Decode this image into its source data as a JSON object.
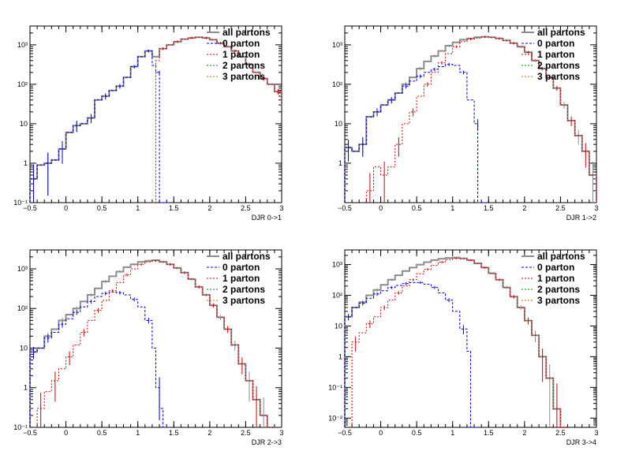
{
  "colors": {
    "all_partons": "#8c8c8c",
    "parton_0": "#0000cc",
    "parton_1": "#cc0000",
    "parton_2": "#008800",
    "parton_3": "#cc6600"
  },
  "chart_data": [
    {
      "type": "line",
      "step": true,
      "xlabel": "DJR 0->1",
      "x_ticks": [
        "−0.5",
        "0",
        "0.5",
        "1",
        "1.5",
        "2",
        "2.5",
        "3"
      ],
      "y_scale": "log",
      "xlim": [
        -0.5,
        3
      ],
      "ylim": [
        0.1,
        3000
      ],
      "y_ticks": [
        {
          "value": 0.1,
          "label": "10⁻¹"
        },
        {
          "value": 1,
          "label": "1"
        },
        {
          "value": 10,
          "label": "10"
        },
        {
          "value": 100,
          "label": "10²"
        },
        {
          "value": 1000,
          "label": "10³"
        }
      ],
      "legend": {
        "position": "top-right",
        "entries": [
          "all partons",
          "0 parton",
          "1 parton",
          "2 partons",
          "3 partons"
        ]
      },
      "series": [
        {
          "name": "all partons",
          "color_key": "all_partons",
          "x": [
            -0.5,
            -0.4,
            -0.3,
            -0.2,
            -0.1,
            0.0,
            0.1,
            0.2,
            0.3,
            0.4,
            0.5,
            0.6,
            0.7,
            0.8,
            0.9,
            1.0,
            1.1,
            1.2,
            1.3,
            1.4,
            1.5,
            1.6,
            1.7,
            1.8,
            1.9,
            2.0,
            2.1,
            2.2,
            2.3,
            2.4,
            2.5,
            2.6,
            2.7,
            2.8,
            2.9,
            3.0
          ],
          "y": [
            0.4,
            0.9,
            1.0,
            1.2,
            2.3,
            6.0,
            9.0,
            10.0,
            14,
            40,
            50,
            70,
            90,
            150,
            280,
            500,
            700,
            500,
            800,
            1000,
            1200,
            1400,
            1500,
            1550,
            1500,
            1350,
            1100,
            900,
            700,
            500,
            320,
            200,
            140,
            100,
            65,
            30
          ]
        },
        {
          "name": "0 parton",
          "color_key": "parton_0",
          "x": [
            -0.5,
            -0.4,
            -0.3,
            -0.2,
            -0.1,
            0.0,
            0.1,
            0.2,
            0.3,
            0.4,
            0.5,
            0.6,
            0.7,
            0.8,
            0.9,
            1.0,
            1.1,
            1.2,
            1.25,
            1.3,
            1.35
          ],
          "y": [
            0.4,
            0.9,
            1.0,
            1.2,
            2.3,
            6.0,
            9.0,
            10.0,
            14,
            40,
            50,
            70,
            90,
            150,
            280,
            500,
            700,
            300,
            200,
            0.1,
            0.1
          ]
        },
        {
          "name": "1 parton",
          "color_key": "parton_1",
          "x": [
            1.2,
            1.25,
            1.3,
            1.4,
            1.5,
            1.6,
            1.7,
            1.8,
            1.9,
            2.0,
            2.1,
            2.2,
            2.3,
            2.4,
            2.5,
            2.6,
            2.7,
            2.8,
            2.9,
            3.0
          ],
          "y": [
            0.1,
            400,
            800,
            1000,
            1200,
            1400,
            1500,
            1550,
            1500,
            1350,
            1100,
            900,
            700,
            500,
            320,
            200,
            140,
            100,
            65,
            30
          ]
        },
        {
          "name": "2 partons",
          "color_key": "parton_2",
          "x": [],
          "y": []
        },
        {
          "name": "3 partons",
          "color_key": "parton_3",
          "x": [],
          "y": []
        }
      ]
    },
    {
      "type": "line",
      "step": true,
      "xlabel": "DJR 1->2",
      "x_ticks": [
        "−0.5",
        "0",
        "0.5",
        "1",
        "1.5",
        "2",
        "2.5",
        "3"
      ],
      "y_scale": "log",
      "xlim": [
        -0.5,
        3
      ],
      "ylim": [
        0.1,
        3000
      ],
      "y_ticks": [
        {
          "value": 1,
          "label": "1"
        },
        {
          "value": 10,
          "label": "10"
        },
        {
          "value": 100,
          "label": "10²"
        },
        {
          "value": 1000,
          "label": "10³"
        }
      ],
      "legend": {
        "position": "top-right",
        "entries": [
          "all partons",
          "0 parton",
          "1 parton",
          "2 partons",
          "3 partons"
        ]
      },
      "series": [
        {
          "name": "all partons",
          "color_key": "all_partons",
          "x": [
            -0.5,
            -0.4,
            -0.3,
            -0.2,
            -0.1,
            0.0,
            0.1,
            0.2,
            0.3,
            0.4,
            0.5,
            0.6,
            0.7,
            0.8,
            0.9,
            1.0,
            1.1,
            1.2,
            1.3,
            1.4,
            1.5,
            1.6,
            1.7,
            1.8,
            1.9,
            2.0,
            2.1,
            2.2,
            2.3,
            2.4,
            2.5,
            2.6,
            2.7,
            2.8,
            2.9,
            3.0
          ],
          "y": [
            2.5,
            2.0,
            3.0,
            15,
            20,
            30,
            40,
            60,
            100,
            150,
            250,
            380,
            520,
            700,
            950,
            1150,
            1350,
            1450,
            1550,
            1600,
            1550,
            1450,
            1300,
            1100,
            900,
            650,
            400,
            250,
            150,
            80,
            30,
            12,
            5,
            2,
            0.5,
            0.1
          ]
        },
        {
          "name": "0 parton",
          "color_key": "parton_0",
          "x": [
            -0.5,
            -0.4,
            -0.3,
            -0.2,
            -0.1,
            0.0,
            0.1,
            0.2,
            0.3,
            0.4,
            0.5,
            0.6,
            0.7,
            0.8,
            0.9,
            1.0,
            1.1,
            1.2,
            1.3,
            1.35
          ],
          "y": [
            2.5,
            2.0,
            3.0,
            15,
            20,
            30,
            40,
            60,
            90,
            120,
            160,
            200,
            240,
            280,
            320,
            300,
            200,
            40,
            10,
            0.1
          ]
        },
        {
          "name": "1 parton",
          "color_key": "parton_1",
          "x": [
            -0.2,
            -0.1,
            0.0,
            0.1,
            0.2,
            0.3,
            0.4,
            0.5,
            0.6,
            0.7,
            0.8,
            0.9,
            1.0,
            1.1,
            1.2,
            1.3,
            1.4,
            1.5,
            1.6,
            1.7,
            1.8,
            1.9,
            2.0,
            2.1,
            2.2,
            2.3,
            2.4,
            2.5,
            2.6,
            2.7,
            2.8,
            2.9,
            3.0
          ],
          "y": [
            0.2,
            0.8,
            0.5,
            0.8,
            3.0,
            10,
            20,
            50,
            100,
            200,
            350,
            600,
            900,
            1200,
            1400,
            1500,
            1600,
            1550,
            1450,
            1300,
            1100,
            900,
            650,
            400,
            250,
            150,
            80,
            30,
            12,
            5,
            2,
            0.5,
            0.1
          ]
        },
        {
          "name": "2 partons",
          "color_key": "parton_2",
          "x": [],
          "y": []
        },
        {
          "name": "3 partons",
          "color_key": "parton_3",
          "x": [],
          "y": []
        }
      ]
    },
    {
      "type": "line",
      "step": true,
      "xlabel": "DJR 2->3",
      "x_ticks": [
        "−0.5",
        "0",
        "0.5",
        "1",
        "1.5",
        "2",
        "2.5",
        "3"
      ],
      "y_scale": "log",
      "xlim": [
        -0.5,
        3
      ],
      "ylim": [
        0.1,
        3000
      ],
      "y_ticks": [
        {
          "value": 0.1,
          "label": "10⁻¹"
        },
        {
          "value": 1,
          "label": "1"
        },
        {
          "value": 10,
          "label": "10"
        },
        {
          "value": 100,
          "label": "10²"
        },
        {
          "value": 1000,
          "label": "10³"
        }
      ],
      "legend": {
        "position": "top-right",
        "entries": [
          "all partons",
          "0 parton",
          "1 parton",
          "2 partons",
          "3 partons"
        ]
      },
      "series": [
        {
          "name": "all partons",
          "color_key": "all_partons",
          "x": [
            -0.5,
            -0.4,
            -0.3,
            -0.2,
            -0.1,
            0.0,
            0.1,
            0.2,
            0.3,
            0.4,
            0.5,
            0.6,
            0.7,
            0.8,
            0.9,
            1.0,
            1.1,
            1.2,
            1.3,
            1.4,
            1.5,
            1.6,
            1.7,
            1.8,
            1.9,
            2.0,
            2.1,
            2.2,
            2.3,
            2.4,
            2.5,
            2.6,
            2.7,
            2.8
          ],
          "y": [
            8,
            10,
            20,
            30,
            50,
            70,
            100,
            150,
            220,
            320,
            480,
            650,
            850,
            1100,
            1300,
            1500,
            1600,
            1650,
            1500,
            1300,
            1050,
            800,
            550,
            350,
            220,
            120,
            60,
            30,
            12,
            4,
            1.5,
            0.5,
            0.2,
            0.1
          ]
        },
        {
          "name": "0 parton",
          "color_key": "parton_0",
          "x": [
            -0.5,
            -0.4,
            -0.3,
            -0.2,
            -0.1,
            0.0,
            0.1,
            0.2,
            0.3,
            0.4,
            0.5,
            0.6,
            0.7,
            0.8,
            0.9,
            1.0,
            1.1,
            1.2,
            1.25,
            1.3,
            1.35
          ],
          "y": [
            8,
            10,
            18,
            25,
            40,
            55,
            80,
            110,
            150,
            200,
            240,
            260,
            250,
            220,
            170,
            110,
            50,
            10,
            1.0,
            0.3,
            0.1
          ]
        },
        {
          "name": "1 parton",
          "color_key": "parton_1",
          "x": [
            -0.4,
            -0.3,
            -0.2,
            -0.1,
            0.0,
            0.1,
            0.2,
            0.3,
            0.4,
            0.5,
            0.6,
            0.7,
            0.8,
            0.9,
            1.0,
            1.1,
            1.2,
            1.3,
            1.4,
            1.5,
            1.6,
            1.7,
            1.8,
            1.9,
            2.0,
            2.1,
            2.2,
            2.3,
            2.4,
            2.5,
            2.6,
            2.7,
            2.8
          ],
          "y": [
            0.3,
            0.8,
            1.5,
            3,
            6,
            12,
            25,
            50,
            90,
            160,
            280,
            450,
            700,
            1000,
            1300,
            1500,
            1600,
            1500,
            1300,
            1050,
            800,
            550,
            350,
            220,
            120,
            60,
            30,
            12,
            4,
            1.5,
            0.5,
            0.2,
            0.1
          ]
        },
        {
          "name": "2 partons",
          "color_key": "parton_2",
          "x": [],
          "y": []
        },
        {
          "name": "3 partons",
          "color_key": "parton_3",
          "x": [],
          "y": []
        }
      ]
    },
    {
      "type": "line",
      "step": true,
      "xlabel": "DJR 3->4",
      "x_ticks": [
        "−0.5",
        "0",
        "0.5",
        "1",
        "1.5",
        "2",
        "2.5",
        "3"
      ],
      "y_scale": "log",
      "xlim": [
        -0.5,
        3
      ],
      "ylim": [
        0.005,
        3000
      ],
      "y_ticks": [
        {
          "value": 0.01,
          "label": "10⁻²"
        },
        {
          "value": 0.1,
          "label": "10⁻¹"
        },
        {
          "value": 1,
          "label": "1"
        },
        {
          "value": 10,
          "label": "10"
        },
        {
          "value": 100,
          "label": "10²"
        },
        {
          "value": 1000,
          "label": "10³"
        }
      ],
      "legend": {
        "position": "top-right",
        "entries": [
          "all partons",
          "0 parton",
          "1 parton",
          "2 partons",
          "3 partons"
        ]
      },
      "series": [
        {
          "name": "all partons",
          "color_key": "all_partons",
          "x": [
            -0.5,
            -0.4,
            -0.3,
            -0.2,
            -0.1,
            0.0,
            0.1,
            0.2,
            0.3,
            0.4,
            0.5,
            0.6,
            0.7,
            0.8,
            0.9,
            1.0,
            1.1,
            1.2,
            1.3,
            1.4,
            1.5,
            1.6,
            1.7,
            1.8,
            1.9,
            2.0,
            2.1,
            2.2,
            2.3,
            2.4,
            2.5
          ],
          "y": [
            20,
            40,
            60,
            100,
            150,
            220,
            320,
            450,
            620,
            800,
            1000,
            1200,
            1400,
            1550,
            1650,
            1700,
            1600,
            1400,
            1100,
            800,
            520,
            320,
            180,
            90,
            40,
            15,
            5,
            1.0,
            0.2,
            0.02,
            0.005
          ]
        },
        {
          "name": "0 parton",
          "color_key": "parton_0",
          "x": [
            -0.5,
            -0.4,
            -0.3,
            -0.2,
            -0.1,
            0.0,
            0.1,
            0.2,
            0.3,
            0.4,
            0.5,
            0.6,
            0.7,
            0.8,
            0.9,
            1.0,
            1.1,
            1.2,
            1.25
          ],
          "y": [
            20,
            40,
            55,
            80,
            110,
            140,
            180,
            210,
            240,
            260,
            260,
            230,
            180,
            120,
            70,
            30,
            8,
            1.5,
            0.005
          ]
        },
        {
          "name": "1 parton",
          "color_key": "parton_1",
          "x": [
            -0.4,
            -0.3,
            -0.2,
            -0.1,
            0.0,
            0.1,
            0.2,
            0.3,
            0.4,
            0.5,
            0.6,
            0.7,
            0.8,
            0.9,
            1.0,
            1.1,
            1.2,
            1.3,
            1.4,
            1.5,
            1.6,
            1.7,
            1.8,
            1.9,
            2.0,
            2.1,
            2.2,
            2.3,
            2.4,
            2.5
          ],
          "y": [
            3,
            6,
            12,
            20,
            40,
            70,
            120,
            200,
            320,
            500,
            700,
            950,
            1200,
            1450,
            1600,
            1550,
            1380,
            1100,
            800,
            520,
            320,
            180,
            90,
            40,
            15,
            5,
            1.0,
            0.2,
            0.02,
            0.005
          ]
        },
        {
          "name": "2 partons",
          "color_key": "parton_2",
          "x": [],
          "y": []
        },
        {
          "name": "3 partons",
          "color_key": "parton_3",
          "x": [],
          "y": []
        }
      ]
    }
  ]
}
